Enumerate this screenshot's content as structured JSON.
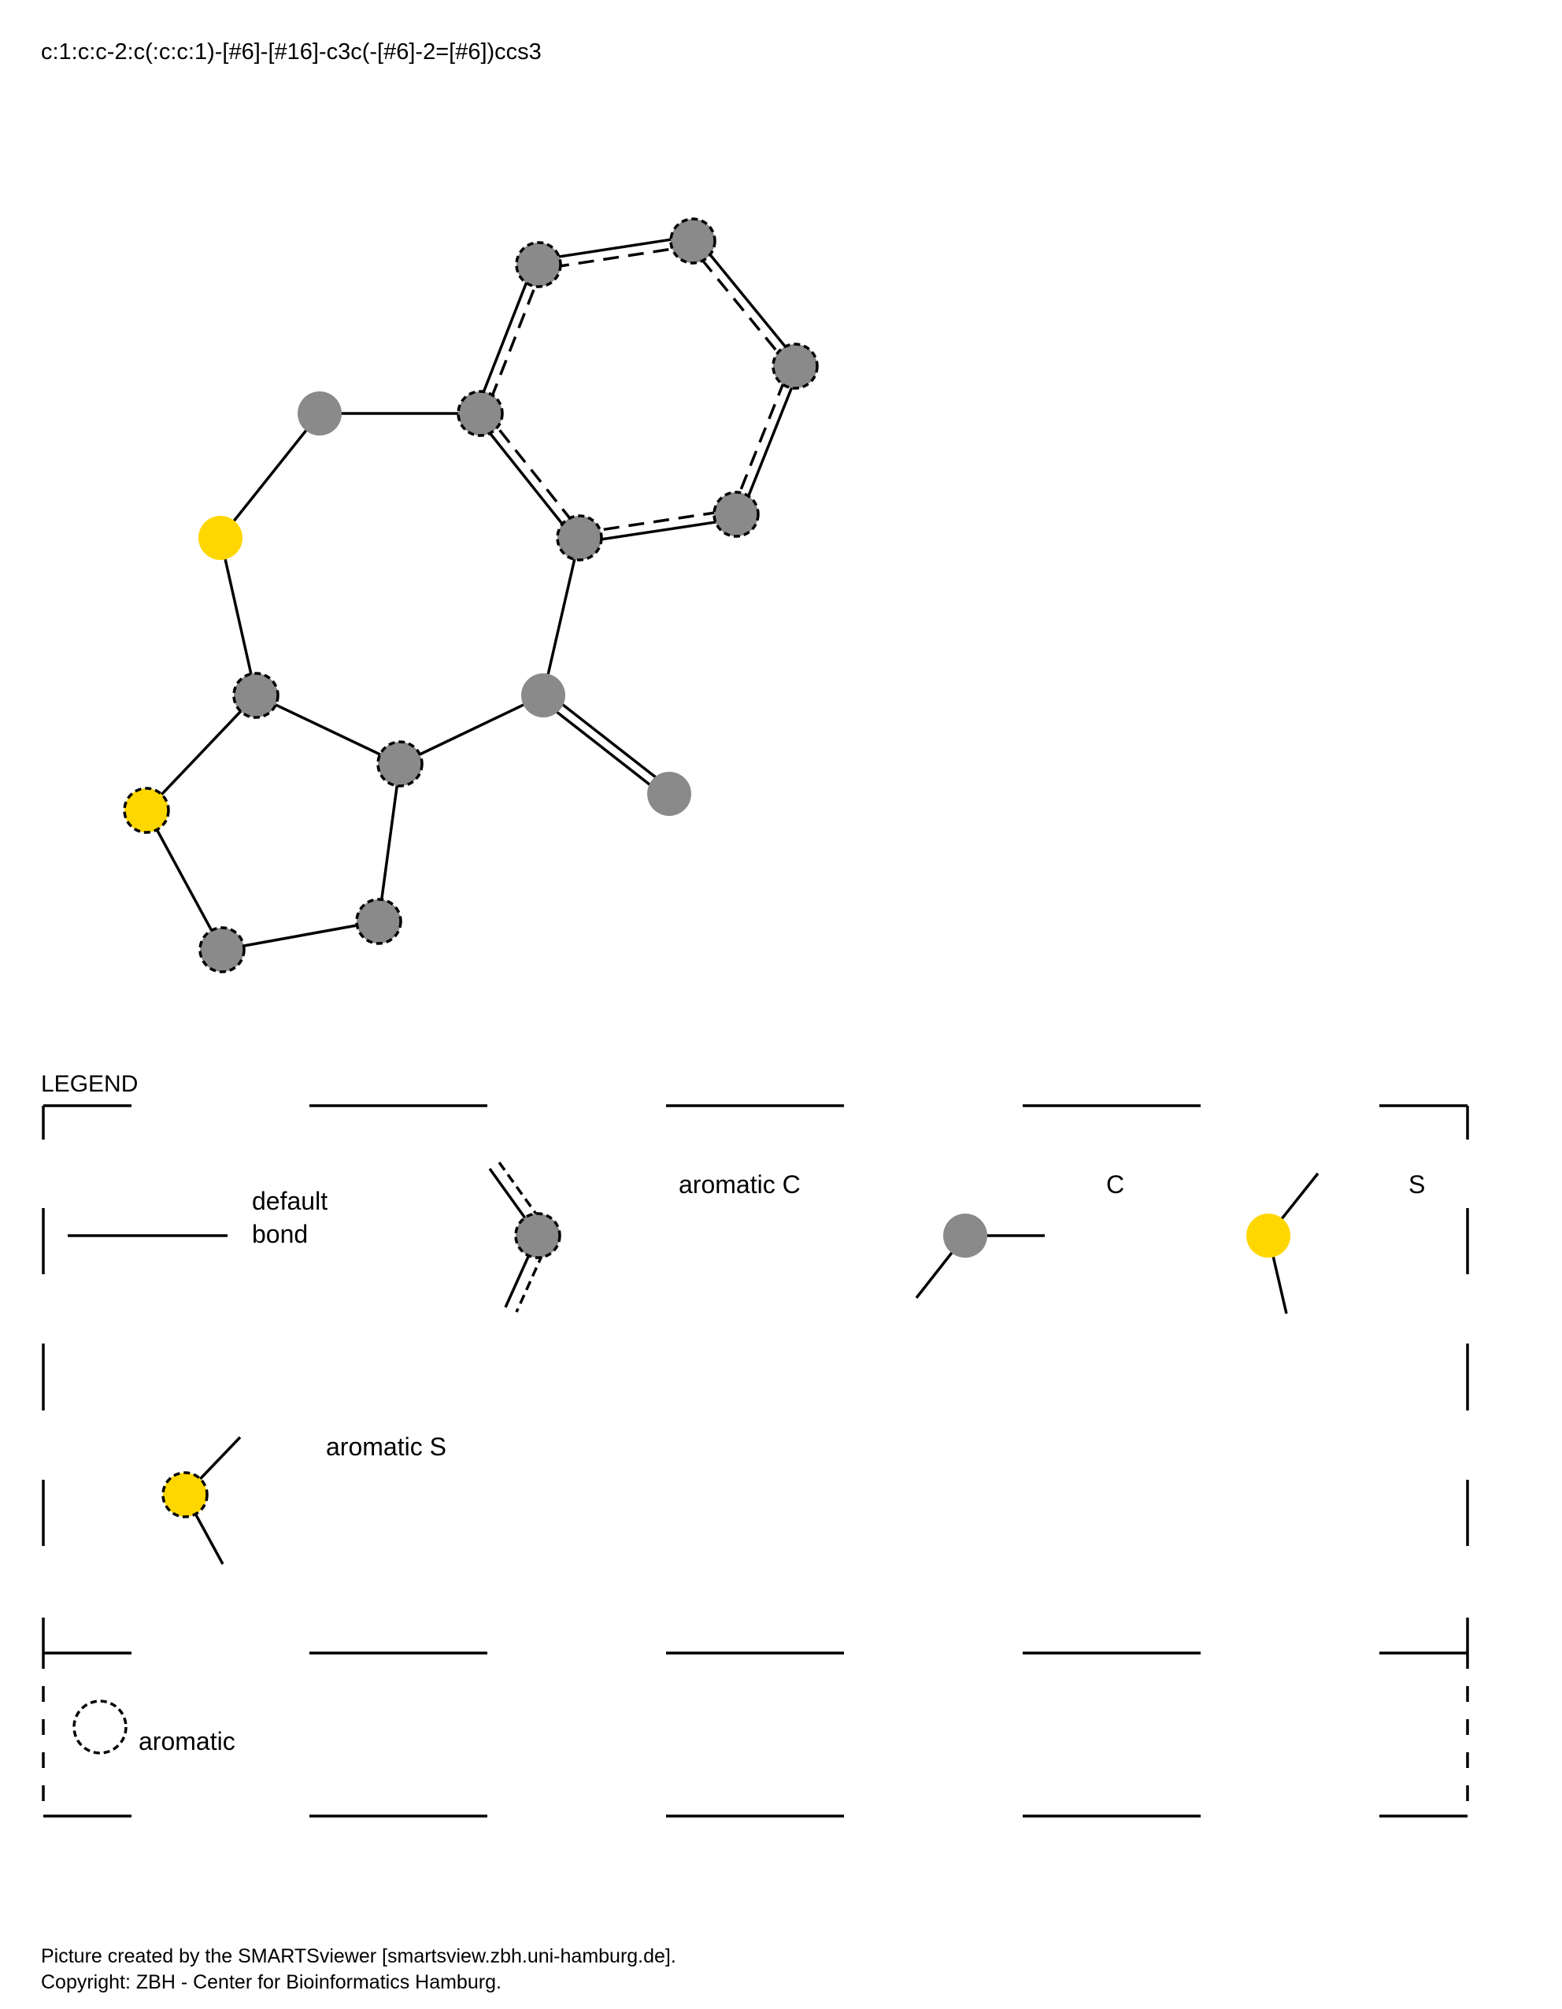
{
  "smarts": "c:1:c:c-2:c(:c:c:1)-[#6]-[#16]-c3c(-[#6]-2=[#6])ccs3",
  "colors": {
    "carbon": "#8a8a8a",
    "sulfur": "#ffd700",
    "line": "#000000"
  },
  "molecule": {
    "atoms": [
      {
        "id": "a1",
        "element": "C",
        "aromatic": true
      },
      {
        "id": "a2",
        "element": "C",
        "aromatic": true
      },
      {
        "id": "a3",
        "element": "C",
        "aromatic": true
      },
      {
        "id": "a4",
        "element": "C",
        "aromatic": true
      },
      {
        "id": "a5",
        "element": "C",
        "aromatic": true
      },
      {
        "id": "a6",
        "element": "C",
        "aromatic": true
      },
      {
        "id": "a7",
        "element": "C",
        "aromatic": false
      },
      {
        "id": "a8",
        "element": "S",
        "aromatic": false
      },
      {
        "id": "a9",
        "element": "C",
        "aromatic": true
      },
      {
        "id": "a10",
        "element": "C",
        "aromatic": true
      },
      {
        "id": "a11",
        "element": "C",
        "aromatic": false
      },
      {
        "id": "a12",
        "element": "C",
        "aromatic": false
      },
      {
        "id": "a13",
        "element": "C",
        "aromatic": true
      },
      {
        "id": "a14",
        "element": "C",
        "aromatic": true
      },
      {
        "id": "a15",
        "element": "S",
        "aromatic": true
      }
    ],
    "bonds": [
      {
        "from": "a1",
        "to": "a2",
        "order": "aromatic"
      },
      {
        "from": "a2",
        "to": "a3",
        "order": "aromatic"
      },
      {
        "from": "a3",
        "to": "a4",
        "order": "aromatic"
      },
      {
        "from": "a4",
        "to": "a5",
        "order": "aromatic"
      },
      {
        "from": "a5",
        "to": "a6",
        "order": "aromatic"
      },
      {
        "from": "a6",
        "to": "a1",
        "order": "aromatic"
      },
      {
        "from": "a3",
        "to": "a7",
        "order": "single"
      },
      {
        "from": "a7",
        "to": "a8",
        "order": "single"
      },
      {
        "from": "a8",
        "to": "a9",
        "order": "single"
      },
      {
        "from": "a9",
        "to": "a10",
        "order": "single"
      },
      {
        "from": "a10",
        "to": "a11",
        "order": "single"
      },
      {
        "from": "a11",
        "to": "a4",
        "order": "single"
      },
      {
        "from": "a11",
        "to": "a12",
        "order": "double"
      },
      {
        "from": "a10",
        "to": "a13",
        "order": "single"
      },
      {
        "from": "a13",
        "to": "a14",
        "order": "single"
      },
      {
        "from": "a14",
        "to": "a15",
        "order": "single"
      },
      {
        "from": "a15",
        "to": "a9",
        "order": "single"
      }
    ]
  },
  "legend": {
    "title": "LEGEND",
    "items": [
      {
        "key": "default_bond",
        "lines": [
          "default",
          "bond"
        ]
      },
      {
        "key": "aromatic_c",
        "lines": [
          "aromatic C"
        ]
      },
      {
        "key": "c",
        "lines": [
          "C"
        ]
      },
      {
        "key": "s",
        "lines": [
          "S"
        ]
      },
      {
        "key": "aromatic_s",
        "lines": [
          "aromatic S"
        ]
      }
    ],
    "aromatic_label": "aromatic"
  },
  "footer": {
    "line1": "Picture created by the SMARTSviewer [smartsview.zbh.uni-hamburg.de].",
    "line2": "Copyright: ZBH - Center for Bioinformatics Hamburg."
  }
}
